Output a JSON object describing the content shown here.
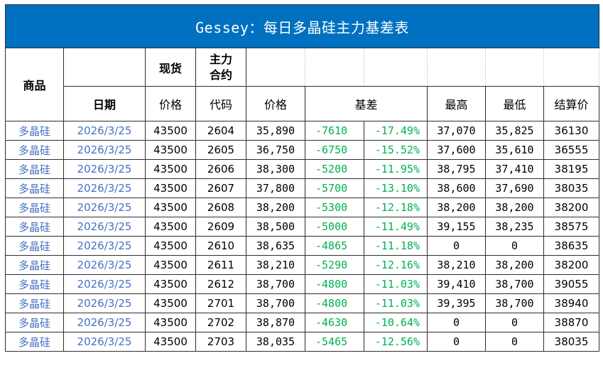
{
  "title": "Gessey：每日多晶硅主力基差表",
  "headers": {
    "product": "商品",
    "spot": "现货",
    "main_contract": "主力\n合约",
    "date": "日期",
    "spot_price": "价格",
    "code": "代码",
    "price": "价格",
    "basis": "基差",
    "high": "最高",
    "low": "最低",
    "settle": "结算价"
  },
  "colors": {
    "title_bg": "#0070c0",
    "title_text": "#ffffff",
    "blue_text": "#4472c4",
    "green_text": "#00b050"
  },
  "rows": [
    {
      "product": "多晶硅",
      "date": "2026/3/25",
      "spot": "43500",
      "code": "2604",
      "price": "35,890",
      "basis": "-7610",
      "pct": "-17.49%",
      "high": "37,070",
      "low": "35,825",
      "settle": "36130"
    },
    {
      "product": "多晶硅",
      "date": "2026/3/25",
      "spot": "43500",
      "code": "2605",
      "price": "36,750",
      "basis": "-6750",
      "pct": "-15.52%",
      "high": "37,600",
      "low": "35,610",
      "settle": "36555"
    },
    {
      "product": "多晶硅",
      "date": "2026/3/25",
      "spot": "43500",
      "code": "2606",
      "price": "38,300",
      "basis": "-5200",
      "pct": "-11.95%",
      "high": "38,795",
      "low": "37,410",
      "settle": "38195"
    },
    {
      "product": "多晶硅",
      "date": "2026/3/25",
      "spot": "43500",
      "code": "2607",
      "price": "37,800",
      "basis": "-5700",
      "pct": "-13.10%",
      "high": "38,600",
      "low": "37,690",
      "settle": "38035"
    },
    {
      "product": "多晶硅",
      "date": "2026/3/25",
      "spot": "43500",
      "code": "2608",
      "price": "38,200",
      "basis": "-5300",
      "pct": "-12.18%",
      "high": "38,200",
      "low": "38,200",
      "settle": "38200"
    },
    {
      "product": "多晶硅",
      "date": "2026/3/25",
      "spot": "43500",
      "code": "2609",
      "price": "38,500",
      "basis": "-5000",
      "pct": "-11.49%",
      "high": "39,155",
      "low": "38,235",
      "settle": "38575"
    },
    {
      "product": "多晶硅",
      "date": "2026/3/25",
      "spot": "43500",
      "code": "2610",
      "price": "38,635",
      "basis": "-4865",
      "pct": "-11.18%",
      "high": "0",
      "low": "0",
      "settle": "38635"
    },
    {
      "product": "多晶硅",
      "date": "2026/3/25",
      "spot": "43500",
      "code": "2611",
      "price": "38,210",
      "basis": "-5290",
      "pct": "-12.16%",
      "high": "38,210",
      "low": "38,200",
      "settle": "38200"
    },
    {
      "product": "多晶硅",
      "date": "2026/3/25",
      "spot": "43500",
      "code": "2612",
      "price": "38,700",
      "basis": "-4800",
      "pct": "-11.03%",
      "high": "39,410",
      "low": "38,700",
      "settle": "39055"
    },
    {
      "product": "多晶硅",
      "date": "2026/3/25",
      "spot": "43500",
      "code": "2701",
      "price": "38,700",
      "basis": "-4800",
      "pct": "-11.03%",
      "high": "39,395",
      "low": "38,700",
      "settle": "38940"
    },
    {
      "product": "多晶硅",
      "date": "2026/3/25",
      "spot": "43500",
      "code": "2702",
      "price": "38,870",
      "basis": "-4630",
      "pct": "-10.64%",
      "high": "0",
      "low": "0",
      "settle": "38870"
    },
    {
      "product": "多晶硅",
      "date": "2026/3/25",
      "spot": "43500",
      "code": "2703",
      "price": "38,035",
      "basis": "-5465",
      "pct": "-12.56%",
      "high": "0",
      "low": "0",
      "settle": "38035"
    }
  ]
}
